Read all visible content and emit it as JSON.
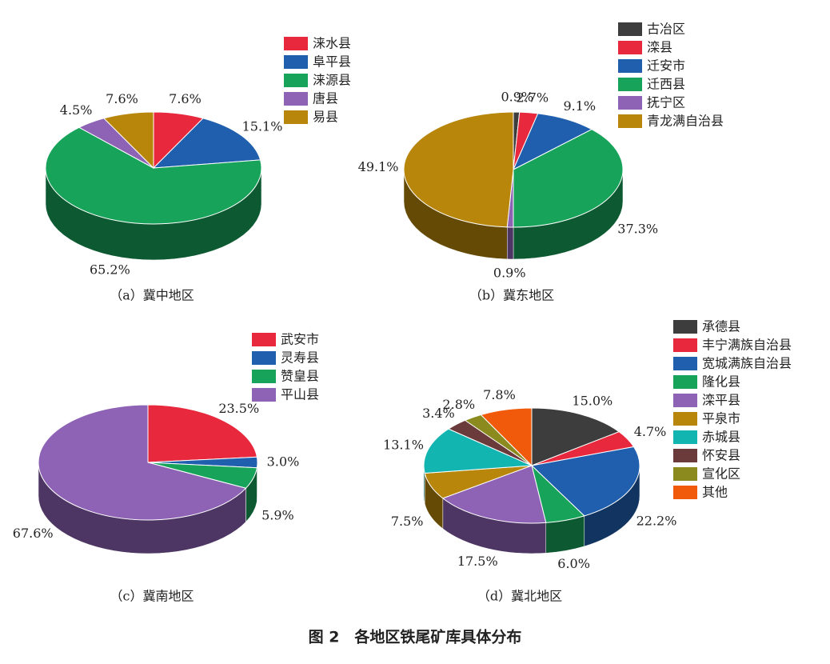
{
  "figure_caption": "图 2　各地区铁尾矿库具体分布",
  "chart_data": [
    {
      "type": "pie",
      "title": "（a）冀中地区",
      "categories": [
        "涞水县",
        "阜平县",
        "涞源县",
        "唐县",
        "易县"
      ],
      "values": [
        7.6,
        15.1,
        65.2,
        4.5,
        7.6
      ],
      "value_labels": [
        "7.6%",
        "15.1%",
        "65.2%",
        "4.5%",
        "7.6%"
      ],
      "colors": [
        "#e8283c",
        "#1f5fae",
        "#17a35a",
        "#8e63b5",
        "#b8860b"
      ]
    },
    {
      "type": "pie",
      "title": "（b）冀东地区",
      "categories": [
        "古冶区",
        "滦县",
        "迁安市",
        "迁西县",
        "抚宁区",
        "青龙满自治县"
      ],
      "values": [
        0.9,
        2.7,
        9.1,
        37.3,
        0.9,
        49.1
      ],
      "value_labels": [
        "0.9%",
        "2.7%",
        "9.1%",
        "37.3%",
        "0.9%",
        "49.1%"
      ],
      "colors": [
        "#3d3d3d",
        "#e8283c",
        "#1f5fae",
        "#17a35a",
        "#8e63b5",
        "#b8860b"
      ]
    },
    {
      "type": "pie",
      "title": "（c）冀南地区",
      "categories": [
        "武安市",
        "灵寿县",
        "赞皇县",
        "平山县"
      ],
      "values": [
        23.5,
        3,
        5.9,
        67.6
      ],
      "value_labels": [
        "23.5%",
        "3.0%",
        "5.9%",
        "67.6%"
      ],
      "colors": [
        "#e8283c",
        "#1f5fae",
        "#17a35a",
        "#8e63b5"
      ]
    },
    {
      "type": "pie",
      "title": "（d）冀北地区",
      "categories": [
        "承德县",
        "丰宁满族自治县",
        "宽城满族自治县",
        "隆化县",
        "滦平县",
        "平泉市",
        "赤城县",
        "怀安县",
        "宣化区",
        "其他"
      ],
      "values": [
        15,
        4.7,
        22.2,
        6,
        17.5,
        7.5,
        13.1,
        3.4,
        2.8,
        7.8
      ],
      "value_labels": [
        "15.0%",
        "4.7%",
        "22.2%",
        "6.0%",
        "17.5%",
        "7.5%",
        "13.1%",
        "3.4%",
        "2.8%",
        "7.8%"
      ],
      "colors": [
        "#3d3d3d",
        "#e8283c",
        "#1f5fae",
        "#17a35a",
        "#8e63b5",
        "#b8860b",
        "#12b5b0",
        "#6b3a3a",
        "#8a8a1e",
        "#f05a0a"
      ]
    }
  ]
}
